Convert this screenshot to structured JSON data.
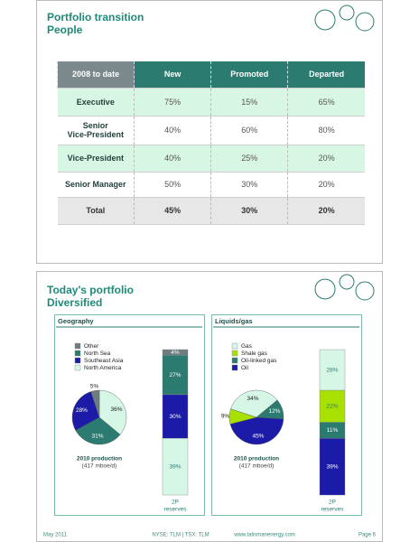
{
  "slides": [
    {
      "title": "Portfolio transition",
      "subtitle": "People",
      "table": {
        "header": [
          "2008 to date",
          "New",
          "Promoted",
          "Departed"
        ],
        "rows": [
          [
            "Executive",
            "75%",
            "15%",
            "65%"
          ],
          [
            "Senior\nVice-President",
            "40%",
            "60%",
            "80%"
          ],
          [
            "Vice-President",
            "40%",
            "25%",
            "20%"
          ],
          [
            "Senior Manager",
            "50%",
            "30%",
            "20%"
          ],
          [
            "Total",
            "45%",
            "30%",
            "20%"
          ]
        ]
      }
    },
    {
      "title": "Today's portfolio",
      "subtitle": "Diversified",
      "panels": [
        {
          "heading": "Geography",
          "categories": [
            "Other",
            "North Sea",
            "Southeast Asia",
            "North America"
          ],
          "colors": [
            "#6e7c80",
            "#2b7b70",
            "#1b1ba8",
            "#d6f7e6"
          ],
          "pie": {
            "type": "pie",
            "caption": [
              "2010 production",
              "(417 mboe/d)"
            ],
            "values": [
              5,
              31,
              28,
              36
            ],
            "value_labels": [
              "5%",
              "31%",
              "28%",
              "36%"
            ]
          },
          "bar": {
            "type": "stacked-bar",
            "caption": [
              "2P",
              "reserves"
            ],
            "values": [
              4,
              27,
              30,
              39
            ],
            "value_labels": [
              "4%",
              "27%",
              "30%",
              "39%"
            ]
          }
        },
        {
          "heading": "Liquids/gas",
          "categories": [
            "Gas",
            "Shale gas",
            "Oil-linked gas",
            "Oil"
          ],
          "colors": [
            "#d6f7e6",
            "#a8e000",
            "#2b7b70",
            "#1b1ba8"
          ],
          "pie": {
            "type": "pie",
            "caption": [
              "2010 production",
              "(417 mboe/d)"
            ],
            "values": [
              34,
              9,
              12,
              45
            ],
            "value_labels": [
              "34%",
              "9%",
              "12%",
              "45%"
            ]
          },
          "bar": {
            "type": "stacked-bar",
            "caption": [
              "2P",
              "reserves"
            ],
            "values": [
              28,
              22,
              11,
              39
            ],
            "value_labels": [
              "28%",
              "22%",
              "11%",
              "39%"
            ]
          }
        }
      ]
    }
  ],
  "footer": {
    "date": "May 2011",
    "tickers": "NYSE: TLM | TSX: TLM",
    "url": "www.talismanenergy.com",
    "page": "Page 6"
  }
}
